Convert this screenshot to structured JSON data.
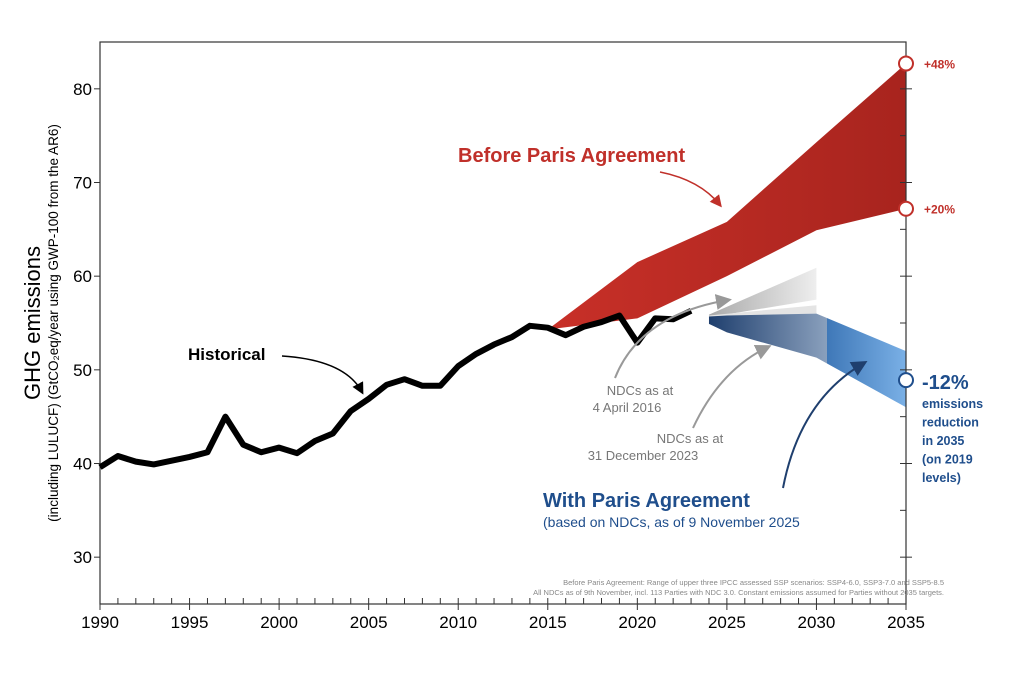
{
  "chart_data": {
    "type": "line",
    "ylabel": "GHG emissions",
    "ylabel_sub": "(including LULUCF) (GtCO₂eq/year using GWP-100 from the AR6)",
    "xlim": [
      1990,
      2035
    ],
    "ylim": [
      25,
      85
    ],
    "xticks": [
      1990,
      1995,
      2000,
      2005,
      2010,
      2015,
      2020,
      2025,
      2030,
      2035
    ],
    "yticks": [
      30,
      40,
      50,
      60,
      70,
      80
    ],
    "grid": false,
    "historical": {
      "name": "Historical",
      "x": [
        1990,
        1991,
        1992,
        1993,
        1994,
        1995,
        1996,
        1997,
        1998,
        1999,
        2000,
        2001,
        2002,
        2003,
        2004,
        2005,
        2006,
        2007,
        2008,
        2009,
        2010,
        2011,
        2012,
        2013,
        2014,
        2015,
        2016,
        2017,
        2018,
        2019,
        2020,
        2021,
        2022,
        2023
      ],
      "y": [
        39.6,
        40.8,
        40.2,
        39.9,
        40.3,
        40.7,
        41.2,
        45.0,
        42.0,
        41.2,
        41.7,
        41.1,
        42.4,
        43.2,
        45.6,
        46.9,
        48.4,
        49.0,
        48.3,
        48.3,
        50.4,
        51.7,
        52.7,
        53.5,
        54.7,
        54.5,
        53.7,
        54.6,
        55.1,
        55.8,
        52.9,
        55.5,
        55.4,
        56.3
      ]
    },
    "before_paris": {
      "name": "Before Paris Agreement",
      "color": "#c0302a",
      "x": [
        2015,
        2020,
        2025,
        2030,
        2035
      ],
      "upper": [
        54.3,
        61.5,
        65.8,
        74.3,
        82.7
      ],
      "lower": [
        54.3,
        55.5,
        60.0,
        64.9,
        67.2
      ]
    },
    "ndc_2016": {
      "name": "NDCs as at 4 April 2016",
      "color": "#cccccc",
      "x": [
        2024,
        2030
      ],
      "upper": [
        55.9,
        60.9
      ],
      "lower": [
        55.6,
        57.5
      ]
    },
    "ndc_2023": {
      "name": "NDCs as at 31 December 2023",
      "color": "#dddddd",
      "x": [
        2024,
        2030
      ],
      "upper": [
        55.8,
        56.9
      ],
      "lower": [
        55.6,
        56.0
      ]
    },
    "with_paris": {
      "name": "With Paris Agreement",
      "subtitle": "(based on NDCs, as of 9 November 2025",
      "color": "#4a86c8",
      "x": [
        2024,
        2025,
        2030,
        2035
      ],
      "upper": [
        55.7,
        55.8,
        56.0,
        52.0
      ],
      "lower": [
        54.9,
        54.0,
        51.3,
        46.0
      ]
    },
    "markers": [
      {
        "label": "+48%",
        "year": 2035,
        "value": 82.7,
        "color": "#c0302a"
      },
      {
        "label": "+20%",
        "year": 2035,
        "value": 67.2,
        "color": "#c0302a"
      },
      {
        "label": "-12%",
        "year": 2035,
        "value": 48.9,
        "color": "#1f4e8c"
      }
    ],
    "reduction_note": [
      "emissions",
      "reduction",
      "in 2035",
      "(on 2019",
      "levels)"
    ],
    "footnotes": [
      "Before Paris Agreement: Range of upper three IPCC assessed SSP scenarios: SSP4-6.0, SSP3-7.0 and SSP5-8.5",
      "All NDCs as of 9th November, incl. 113 Parties with NDC 3.0. Constant emissions assumed for Parties without 2035 targets."
    ]
  }
}
